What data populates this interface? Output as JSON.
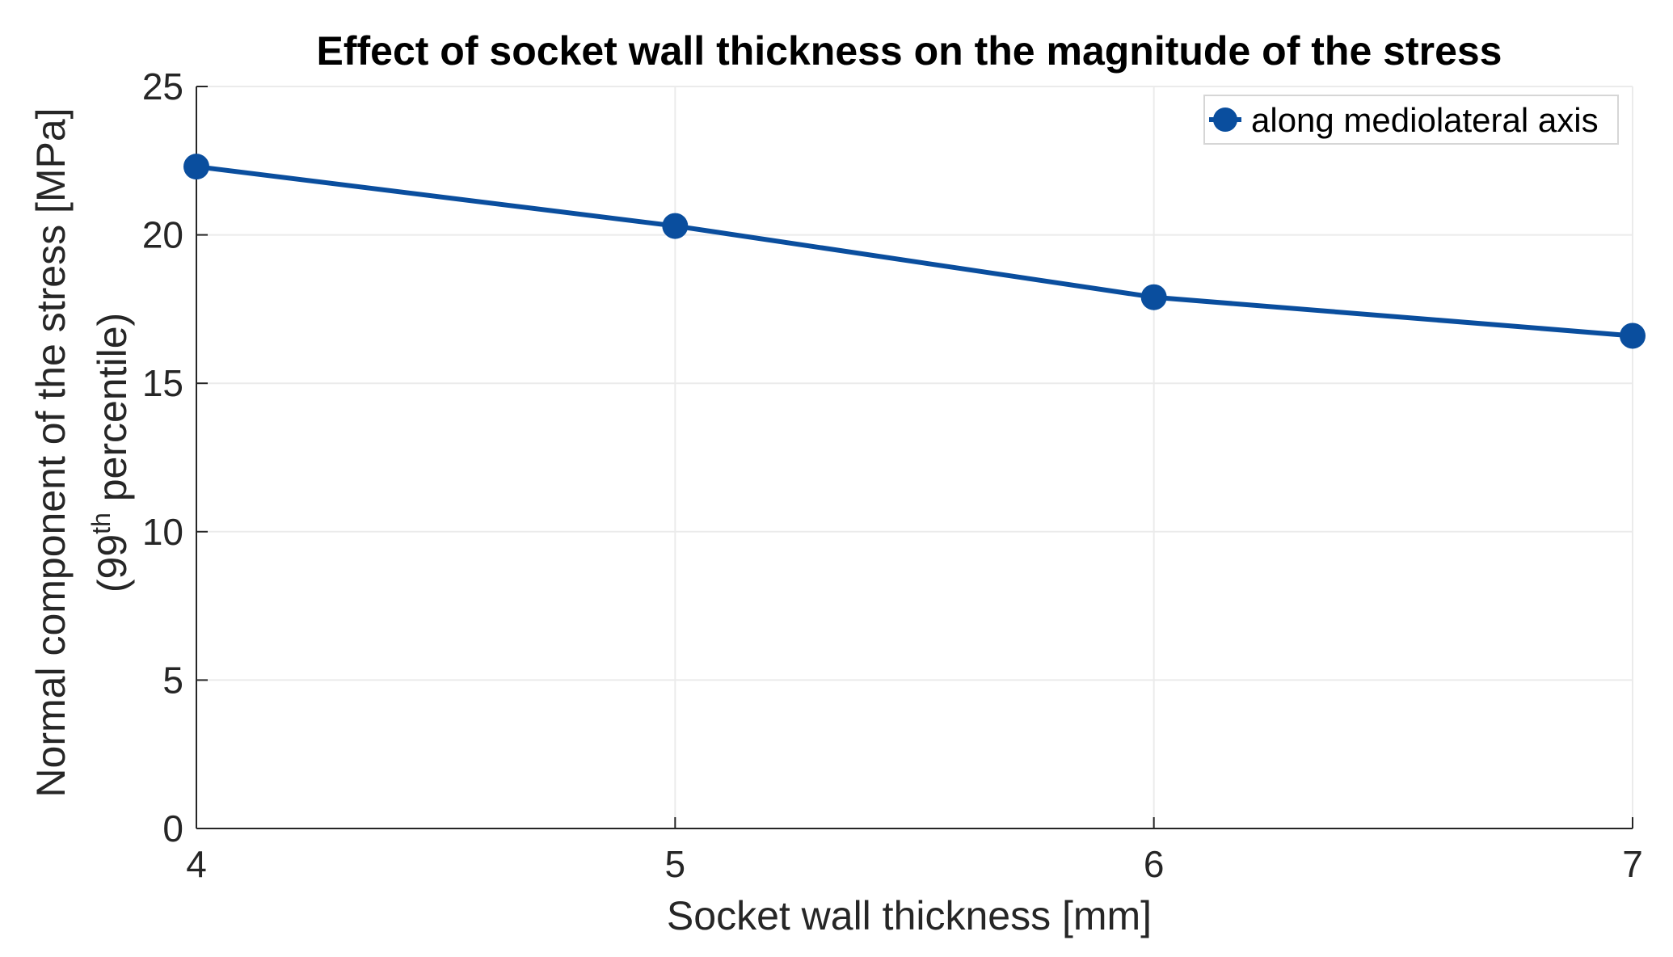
{
  "chart_data": {
    "type": "line",
    "title": "Effect of socket wall thickness on the magnitude of the stress",
    "xlabel": "Socket wall thickness [mm]",
    "ylabel_line1": "Normal component of the stress [MPa]",
    "ylabel_line2_prefix": "(99",
    "ylabel_line2_sup": "th",
    "ylabel_line2_suffix": " percentile)",
    "x": [
      4,
      5,
      6,
      7
    ],
    "series": [
      {
        "name": "along mediolateral axis",
        "values": [
          22.3,
          20.3,
          17.9,
          16.6
        ],
        "color": "#0a4e9e"
      }
    ],
    "xlim": [
      4,
      7
    ],
    "ylim": [
      0,
      25
    ],
    "xticks": [
      "4",
      "5",
      "6",
      "7"
    ],
    "yticks": [
      "0",
      "5",
      "10",
      "15",
      "20",
      "25"
    ],
    "grid": true,
    "legend_position": "top-right"
  }
}
